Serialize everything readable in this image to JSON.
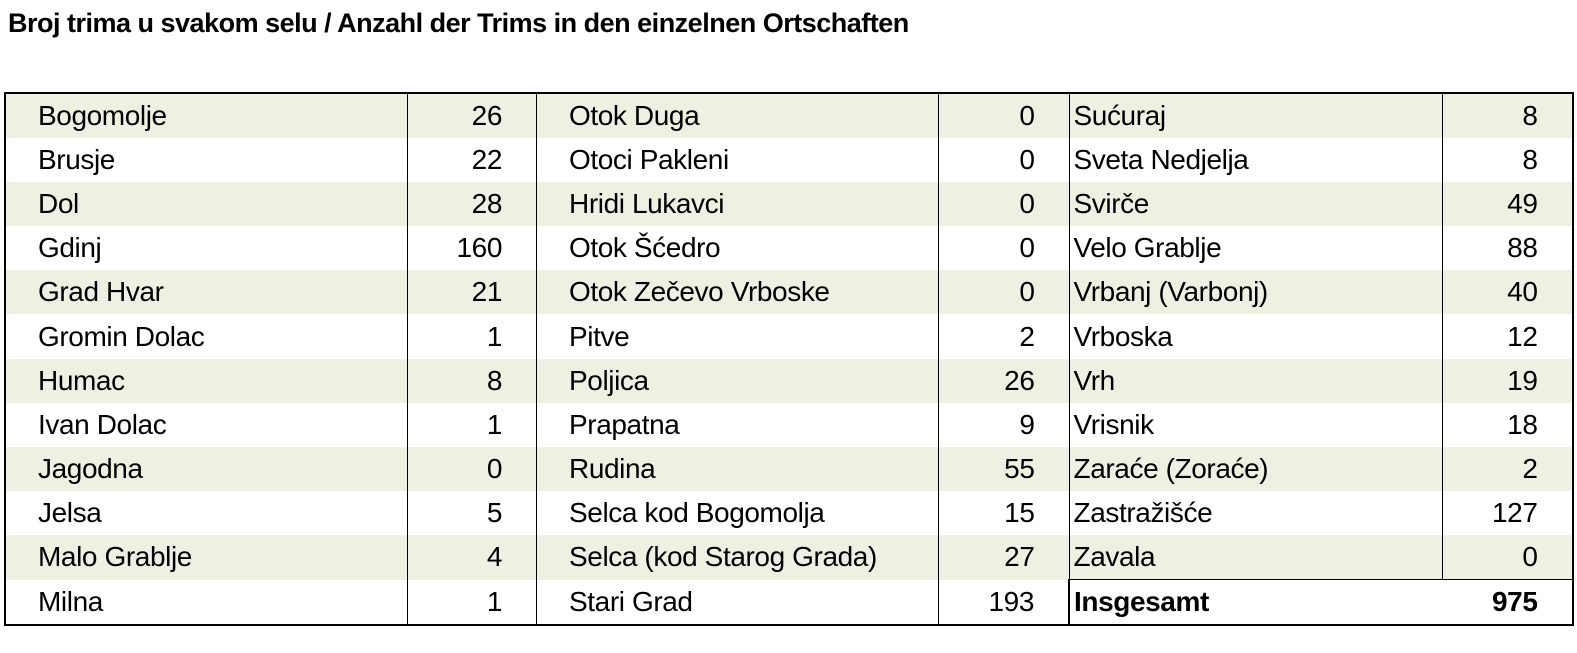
{
  "title": "Broj trima u svakom selu / Anzahl der Trims in den einzelnen Ortschaften",
  "table": {
    "rows": [
      [
        "Bogomolje",
        26,
        "Otok Duga",
        0,
        "Sućuraj",
        8
      ],
      [
        "Brusje",
        22,
        "Otoci Pakleni",
        0,
        "Sveta Nedjelja",
        8
      ],
      [
        "Dol",
        28,
        "Hridi Lukavci",
        0,
        "Svirče",
        49
      ],
      [
        "Gdinj",
        160,
        "Otok Šćedro",
        0,
        "Velo Grablje",
        88
      ],
      [
        "Grad Hvar",
        21,
        "Otok Zečevo Vrboske",
        0,
        "Vrbanj (Varbonj)",
        40
      ],
      [
        "Gromin Dolac",
        1,
        "Pitve",
        2,
        "Vrboska",
        12
      ],
      [
        "Humac",
        8,
        "Poljica",
        26,
        "Vrh",
        19
      ],
      [
        "Ivan Dolac",
        1,
        "Prapatna",
        9,
        "Vrisnik",
        18
      ],
      [
        "Jagodna",
        0,
        "Rudina",
        55,
        "Zaraće (Zoraće)",
        2
      ],
      [
        "Jelsa",
        5,
        "Selca kod Bogomolja",
        15,
        "Zastražišće",
        127
      ],
      [
        "Malo Grablje",
        4,
        "Selca (kod Starog Grada)",
        27,
        "Zavala",
        0
      ],
      [
        "Milna",
        1,
        "Stari Grad",
        193,
        "Insgesamt",
        975
      ]
    ]
  }
}
